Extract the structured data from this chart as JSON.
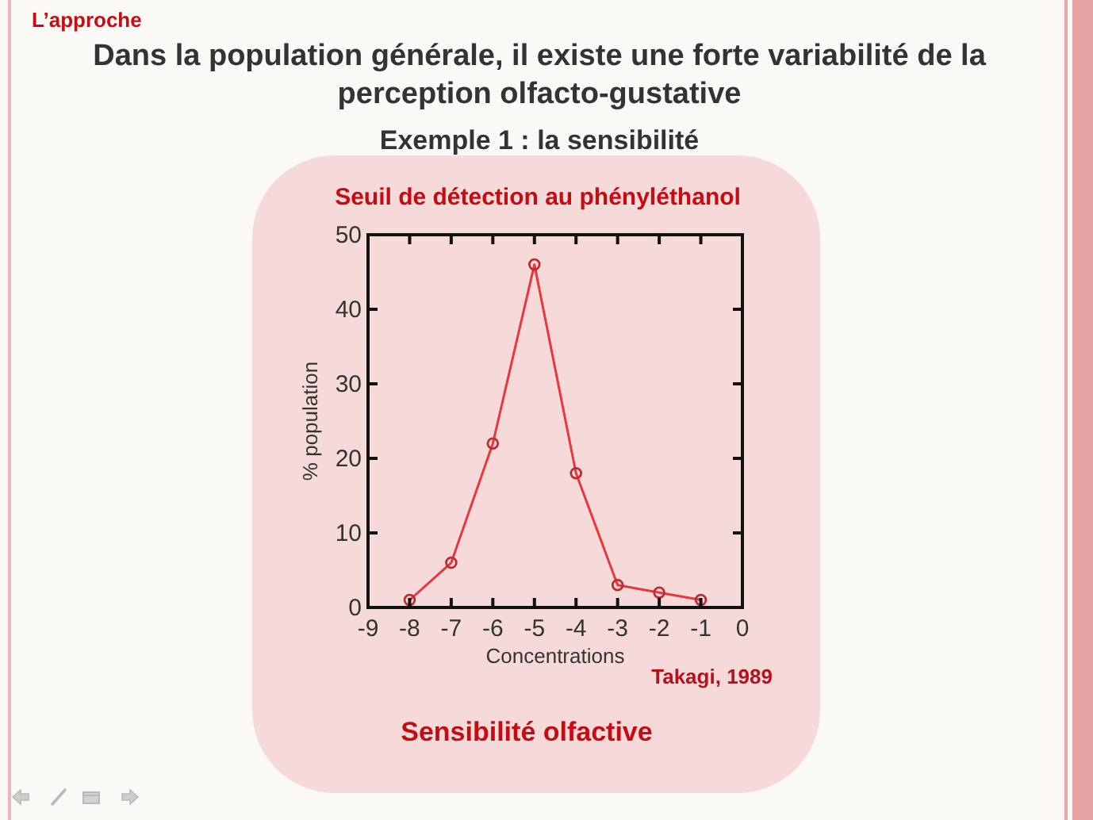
{
  "chart_data": {
    "type": "line",
    "title": "Dans la population générale, il existe une forte variabilité de la perception olfacto-gustative",
    "subtitle": "Exemple 1 : la sensibilité",
    "xlabel": "Concentrations",
    "ylabel": "% population",
    "annotations": [
      "L’approche",
      "Seuil de détection au phényléthanol",
      "Takagi, 1989",
      "Sensibilité olfactive"
    ],
    "x": [
      -8,
      -7,
      -6,
      -5,
      -4,
      -3,
      -2,
      -1
    ],
    "values": [
      1,
      6,
      22,
      46,
      18,
      3,
      2,
      1
    ],
    "color": "#e8383d",
    "marker": "circle",
    "xlim": [
      -9,
      0
    ],
    "xticks": [
      -9,
      -8,
      -7,
      -6,
      -5,
      -4,
      -3,
      -2,
      -1,
      0
    ],
    "ylim": [
      0,
      50
    ],
    "yticks": [
      0,
      10,
      20,
      30,
      40,
      50
    ]
  }
}
